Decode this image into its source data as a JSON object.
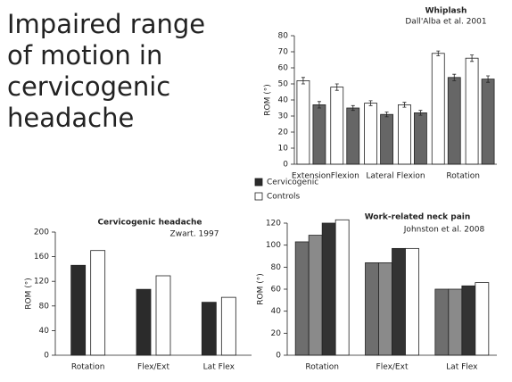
{
  "header": {
    "title": "Impaired range of motion in cervicogenic headache"
  },
  "legend": [
    {
      "name": "Cervicogenic",
      "color": "#2b2b2b"
    },
    {
      "name": "Controls",
      "color": "#ffffff"
    }
  ],
  "chart_data": [
    {
      "type": "bar",
      "title": "Whiplash",
      "subtitle": "Dall'Alba et al. 2001",
      "ylabel": "ROM (°)",
      "categories": [
        "Extension",
        "Flexion",
        "Lateral Flexion",
        null,
        "Rotation",
        null
      ],
      "series": [
        {
          "color": "#ffffff",
          "values": [
            52,
            48,
            38,
            37,
            69,
            66
          ],
          "errors": [
            2,
            2,
            1.5,
            1.5,
            1.5,
            2
          ]
        },
        {
          "color": "#666666",
          "values": [
            37,
            35,
            31,
            32,
            54,
            53
          ],
          "errors": [
            2,
            1.5,
            1.5,
            1.5,
            2,
            2
          ]
        }
      ],
      "ylim": [
        0,
        80
      ],
      "yticks": [
        0,
        10,
        20,
        30,
        40,
        50,
        60,
        70,
        80
      ]
    },
    {
      "type": "bar",
      "title": "Cervicogenic headache",
      "subtitle": "Zwart. 1997",
      "ylabel": "ROM (°)",
      "categories": [
        "Rotation",
        "Flex/Ext",
        "Lat Flex"
      ],
      "series": [
        {
          "color": "#2b2b2b",
          "values": [
            146,
            107,
            86
          ]
        },
        {
          "color": "#ffffff",
          "values": [
            170,
            129,
            94
          ]
        }
      ],
      "ylim": [
        0,
        200
      ],
      "yticks": [
        0,
        40,
        80,
        120,
        160,
        200
      ]
    },
    {
      "type": "bar",
      "title": "Work-related neck pain",
      "subtitle": "Johnston et al. 2008",
      "ylabel": "ROM (°)",
      "categories": [
        "Rotation",
        "Flex/Ext",
        "Lat Flex"
      ],
      "series": [
        {
          "color": "#6e6e6e",
          "values": [
            103,
            84,
            60
          ]
        },
        {
          "color": "#8a8a8a",
          "values": [
            109,
            84,
            60
          ]
        },
        {
          "color": "#333333",
          "values": [
            120,
            97,
            63
          ]
        },
        {
          "color": "#ffffff",
          "values": [
            123,
            97,
            66
          ]
        }
      ],
      "ylim": [
        0,
        120
      ],
      "yticks": [
        0,
        20,
        40,
        60,
        80,
        100,
        120
      ]
    }
  ]
}
